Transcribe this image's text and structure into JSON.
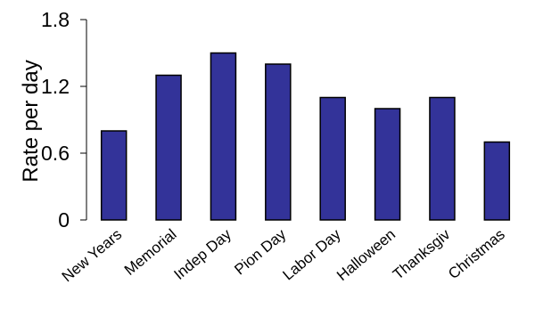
{
  "chart_data": {
    "type": "bar",
    "title": "",
    "xlabel": "",
    "ylabel": "Rate per day",
    "ylim": [
      0,
      1.8
    ],
    "yticks": [
      "0",
      "0.6",
      "1.2",
      "1.8"
    ],
    "categories": [
      "New Years",
      "Memorial",
      "Indep Day",
      "Pion Day",
      "Labor Day",
      "Halloween",
      "Thanksgiv",
      "Christmas"
    ],
    "values": [
      0.8,
      1.3,
      1.5,
      1.4,
      1.1,
      1.0,
      1.1,
      0.7
    ],
    "bar_color": "#333399",
    "bar_edge_color": "#000000",
    "grid": false,
    "legend": "none"
  }
}
